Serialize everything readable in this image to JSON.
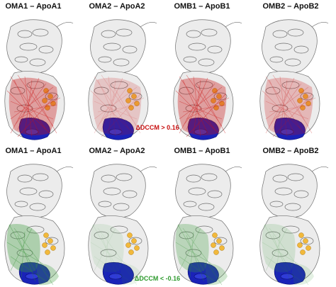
{
  "rows": [
    {
      "panels": [
        {
          "label": "OMA1 – ApoA1"
        },
        {
          "label": "OMA2 – ApoA2"
        },
        {
          "label": "OMB1 – ApoB1"
        },
        {
          "label": "OMB2 – ApoB2"
        }
      ],
      "annotation": "ΔDCCM > 0.16"
    },
    {
      "panels": [
        {
          "label": "OMA1 – ApoA1"
        },
        {
          "label": "OMA2 – ApoA2"
        },
        {
          "label": "OMB1 – ApoB1"
        },
        {
          "label": "OMB2 – ApoB2"
        }
      ],
      "annotation": "ΔDCCM < -0.16"
    }
  ]
}
